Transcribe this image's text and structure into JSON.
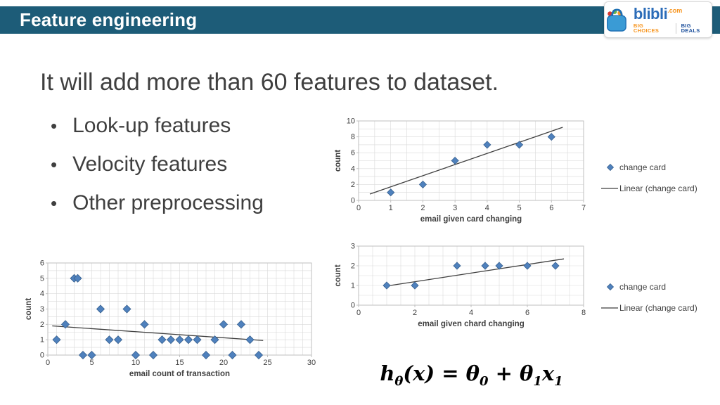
{
  "colors": {
    "header_bg": "#1D5C78",
    "body_text": "#3F3F3F",
    "marker": "#4F81BD",
    "marker_edge": "#38618F",
    "trend": "#3F3F3F",
    "grid": "#D9D9D9",
    "plot_border": "#BFBFBF",
    "logo_blue": "#2B6CB8",
    "logo_orange": "#F7941D"
  },
  "header": {
    "title": "Feature engineering",
    "logo": {
      "brand": "blibli",
      "tld": ".com",
      "tagline_left": "BIG CHOICES",
      "tagline_right": "BIG DEALS"
    }
  },
  "content": {
    "headline": "It will add more than 60 features to dataset.",
    "bullets": [
      "Look-up features",
      "Velocity features",
      "Other preprocessing"
    ]
  },
  "formula": {
    "parts": [
      {
        "t": "h",
        "sub": false
      },
      {
        "t": "θ",
        "sub": true
      },
      {
        "t": "(x) = ",
        "sub": false
      },
      {
        "t": "θ",
        "sub": false
      },
      {
        "t": "0",
        "sub": true
      },
      {
        "t": " + ",
        "sub": false
      },
      {
        "t": "θ",
        "sub": false
      },
      {
        "t": "1",
        "sub": true
      },
      {
        "t": "x",
        "sub": false
      },
      {
        "t": "1",
        "sub": true
      }
    ]
  },
  "chart_data": [
    {
      "type": "scatter",
      "title": "",
      "xlabel": "email given card changing",
      "ylabel": "count",
      "xlim": [
        0,
        7
      ],
      "ylim": [
        0,
        10
      ],
      "xticks": [
        0,
        1,
        2,
        3,
        4,
        5,
        6,
        7
      ],
      "yticks": [
        0,
        2,
        4,
        6,
        8,
        10
      ],
      "grid": {
        "x_step": 0.5,
        "y_step": 1
      },
      "points": [
        [
          1,
          1
        ],
        [
          2,
          2
        ],
        [
          3,
          5
        ],
        [
          4,
          7
        ],
        [
          5,
          7
        ],
        [
          6,
          8
        ]
      ],
      "trend": [
        [
          0.35,
          0.8
        ],
        [
          6.35,
          9.2
        ]
      ],
      "legend": [
        "change card",
        "Linear (change card)"
      ],
      "marker_size": 5
    },
    {
      "type": "scatter",
      "title": "",
      "xlabel": "email given chard changing",
      "ylabel": "count",
      "xlim": [
        0,
        8
      ],
      "ylim": [
        0,
        3
      ],
      "xticks": [
        0,
        2,
        4,
        6,
        8
      ],
      "yticks": [
        0,
        1,
        2,
        3
      ],
      "grid": {
        "x_step": 0.5,
        "y_step": 0.5
      },
      "points": [
        [
          1,
          1
        ],
        [
          2,
          1
        ],
        [
          3.5,
          2
        ],
        [
          4.5,
          2
        ],
        [
          5,
          2
        ],
        [
          6,
          2
        ],
        [
          7,
          2
        ]
      ],
      "trend": [
        [
          0.9,
          0.95
        ],
        [
          7.3,
          2.35
        ]
      ],
      "legend": [
        "change card",
        "Linear (change card)"
      ],
      "marker_size": 5
    },
    {
      "type": "scatter",
      "title": "",
      "xlabel": "email count of transaction",
      "ylabel": "count",
      "xlim": [
        0,
        30
      ],
      "ylim": [
        0,
        6
      ],
      "xticks": [
        0,
        5,
        10,
        15,
        20,
        25,
        30
      ],
      "yticks": [
        0,
        1,
        2,
        3,
        4,
        5,
        6
      ],
      "grid": {
        "x_step": 1,
        "y_step": 0.5
      },
      "points": [
        [
          1,
          1
        ],
        [
          2,
          2
        ],
        [
          3,
          5
        ],
        [
          3.4,
          5
        ],
        [
          4,
          0
        ],
        [
          5,
          0
        ],
        [
          6,
          3
        ],
        [
          7,
          1
        ],
        [
          8,
          1
        ],
        [
          9,
          3
        ],
        [
          10,
          0
        ],
        [
          11,
          2
        ],
        [
          12,
          0
        ],
        [
          13,
          1
        ],
        [
          14,
          1
        ],
        [
          15,
          1
        ],
        [
          16,
          1
        ],
        [
          17,
          1
        ],
        [
          18,
          0
        ],
        [
          19,
          1
        ],
        [
          20,
          2
        ],
        [
          21,
          0
        ],
        [
          22,
          2
        ],
        [
          23,
          1
        ],
        [
          24,
          0
        ]
      ],
      "trend": [
        [
          0.5,
          1.9
        ],
        [
          24.5,
          0.95
        ]
      ],
      "legend": null,
      "marker_size": 5.5
    }
  ]
}
